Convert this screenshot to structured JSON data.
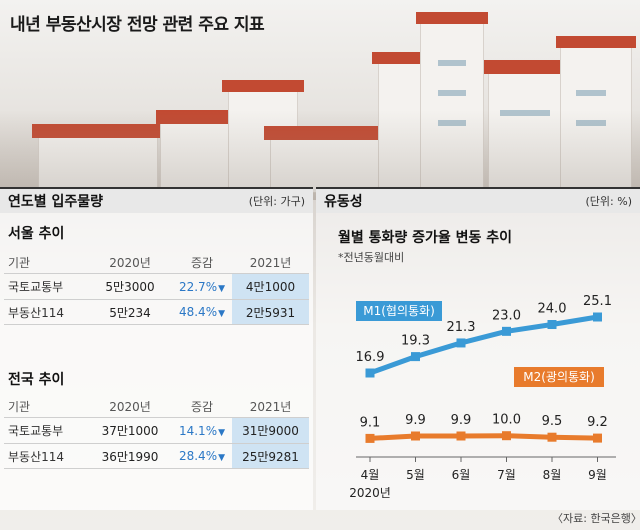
{
  "title": "내년 부동산시장 전망 관련 주요 지표",
  "left_panel": {
    "heading": "연도별 입주물량",
    "unit": "(단위: 가구)",
    "sections": [
      {
        "title": "서울 추이",
        "columns": [
          "기관",
          "2020년",
          "증감",
          "2021년"
        ],
        "rows": [
          {
            "org": "국토교통부",
            "y2020": "5만3000",
            "change": "22.7%",
            "y2021": "4만1000"
          },
          {
            "org": "부동산114",
            "y2020": "5만234",
            "change": "48.4%",
            "y2021": "2만5931"
          }
        ]
      },
      {
        "title": "전국 추이",
        "columns": [
          "기관",
          "2020년",
          "증감",
          "2021년"
        ],
        "rows": [
          {
            "org": "국토교통부",
            "y2020": "37만1000",
            "change": "14.1%",
            "y2021": "31만9000"
          },
          {
            "org": "부동산114",
            "y2020": "36만1990",
            "change": "28.4%",
            "y2021": "25만9281"
          }
        ]
      }
    ],
    "down_marker": "▼"
  },
  "right_panel": {
    "heading": "유동성",
    "unit": "(단위: %)",
    "chart_title": "월별 통화량 증가율 변동 추이",
    "note": "*전년동월대비",
    "year_label": "2020년"
  },
  "colors": {
    "m1": "#3a9ad6",
    "m2": "#e87b2c",
    "down": "#2b78c6",
    "cell_bg": "#cfe3f3"
  },
  "chart_data": {
    "type": "line",
    "x": [
      "4월",
      "5월",
      "6월",
      "7월",
      "8월",
      "9월"
    ],
    "series": [
      {
        "name": "M1(협의통화)",
        "values": [
          16.9,
          19.3,
          21.3,
          23.0,
          24.0,
          25.1
        ],
        "labels": [
          "16.9",
          "19.3",
          "21.3",
          "23.0",
          "24.0",
          "25.1"
        ]
      },
      {
        "name": "M2(광의통화)",
        "values": [
          9.1,
          9.9,
          9.9,
          10.0,
          9.5,
          9.2
        ],
        "labels": [
          "9.1",
          "9.9",
          "9.9",
          "10.0",
          "9.5",
          "9.2"
        ]
      }
    ],
    "grid": false,
    "legend": "inline labels"
  },
  "source": "〈자료: 한국은행〉"
}
